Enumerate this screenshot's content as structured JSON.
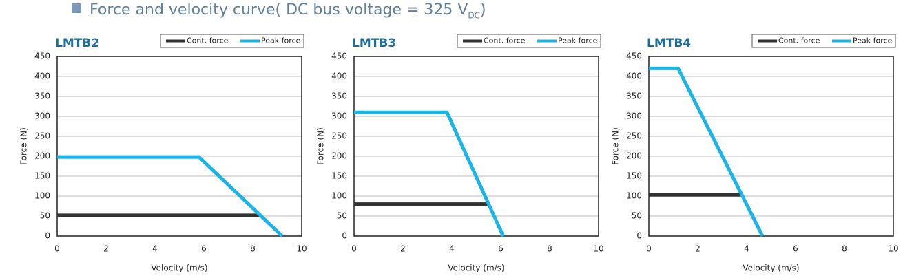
{
  "header": {
    "title": "Force and velocity curve( DC bus voltage = 325 V",
    "title_subscript": "DC",
    "title_suffix": ")"
  },
  "chart_data": [
    {
      "type": "line",
      "title": "LMTB2",
      "xlabel": "Velocity (m/s)",
      "ylabel": "Force (N)",
      "xlim": [
        0,
        10
      ],
      "xticks": [
        0,
        2,
        4,
        6,
        8,
        10
      ],
      "ylim": [
        0,
        450
      ],
      "yticks": [
        0,
        50,
        100,
        150,
        200,
        250,
        300,
        350,
        400,
        450
      ],
      "grid": true,
      "legend": "top-right",
      "series": [
        {
          "name": "Cont. force",
          "color": "#333333",
          "x": [
            0,
            8.3
          ],
          "values": [
            52,
            52
          ]
        },
        {
          "name": "Peak force",
          "color": "#1ab4e8",
          "x": [
            0,
            5.8,
            9.2
          ],
          "values": [
            198,
            198,
            0
          ]
        }
      ]
    },
    {
      "type": "line",
      "title": "LMTB3",
      "xlabel": "Velocity (m/s)",
      "ylabel": "Force (N)",
      "xlim": [
        0,
        10
      ],
      "xticks": [
        0,
        2,
        4,
        6,
        8,
        10
      ],
      "ylim": [
        0,
        450
      ],
      "yticks": [
        0,
        50,
        100,
        150,
        200,
        250,
        300,
        350,
        400,
        450
      ],
      "grid": true,
      "legend": "top-right",
      "series": [
        {
          "name": "Cont. force",
          "color": "#333333",
          "x": [
            0,
            5.5
          ],
          "values": [
            80,
            80
          ]
        },
        {
          "name": "Peak force",
          "color": "#1ab4e8",
          "x": [
            0,
            3.8,
            6.1
          ],
          "values": [
            310,
            310,
            0
          ]
        }
      ]
    },
    {
      "type": "line",
      "title": "LMTB4",
      "xlabel": "Velocity (m/s)",
      "ylabel": "Force (N)",
      "xlim": [
        0,
        10
      ],
      "xticks": [
        0,
        2,
        4,
        6,
        8,
        10
      ],
      "ylim": [
        0,
        450
      ],
      "yticks": [
        0,
        50,
        100,
        150,
        200,
        250,
        300,
        350,
        400,
        450
      ],
      "grid": true,
      "legend": "top-right",
      "series": [
        {
          "name": "Cont. force",
          "color": "#333333",
          "x": [
            0,
            3.8
          ],
          "values": [
            103,
            103
          ]
        },
        {
          "name": "Peak force",
          "color": "#1ab4e8",
          "x": [
            0,
            1.2,
            4.65
          ],
          "values": [
            420,
            420,
            0
          ]
        }
      ]
    }
  ]
}
